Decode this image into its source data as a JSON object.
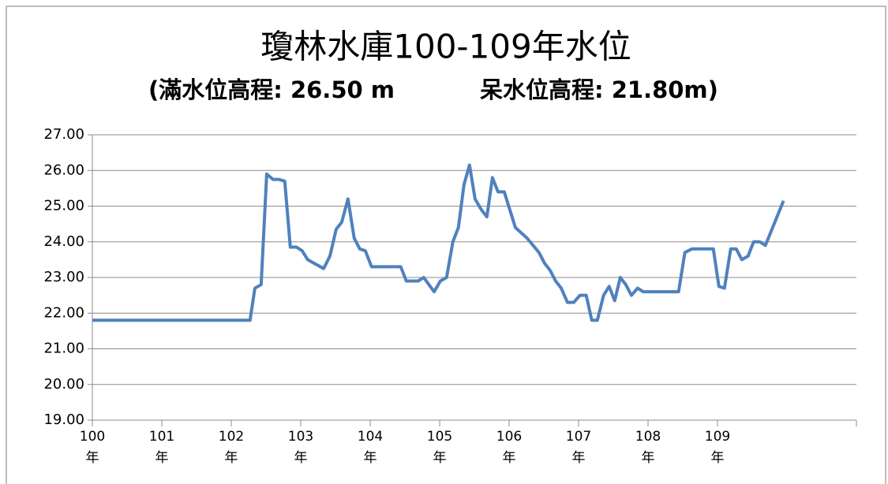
{
  "chart_data": {
    "type": "line",
    "title": "瓊林水庫100-109年水位",
    "subtitles": [
      "(滿水位高程: 26.50 m",
      "呆水位高程: 21.80m)"
    ],
    "xlim": [
      100,
      111
    ],
    "xticks": [
      {
        "value": 100,
        "label": "100年"
      },
      {
        "value": 101,
        "label": "101年"
      },
      {
        "value": 102,
        "label": "102年"
      },
      {
        "value": 103,
        "label": "103年"
      },
      {
        "value": 104,
        "label": "104年"
      },
      {
        "value": 105,
        "label": "105年"
      },
      {
        "value": 106,
        "label": "106年"
      },
      {
        "value": 107,
        "label": "107年"
      },
      {
        "value": 108,
        "label": "108年"
      },
      {
        "value": 109,
        "label": "109年"
      }
    ],
    "ylim": [
      19,
      27
    ],
    "yticks": [
      {
        "value": 19,
        "label": "19.00"
      },
      {
        "value": 20,
        "label": "20.00"
      },
      {
        "value": 21,
        "label": "21.00"
      },
      {
        "value": 22,
        "label": "22.00"
      },
      {
        "value": 23,
        "label": "23.00"
      },
      {
        "value": 24,
        "label": "24.00"
      },
      {
        "value": 25,
        "label": "25.00"
      },
      {
        "value": 26,
        "label": "26.00"
      },
      {
        "value": 27,
        "label": "27.00"
      }
    ],
    "grid": true,
    "series": [
      {
        "color": "#4f81bd",
        "x": [
          100,
          102.27,
          102.34,
          102.43,
          102.51,
          102.6,
          102.68,
          102.77,
          102.85,
          102.94,
          103.02,
          103.1,
          103.19,
          103.33,
          103.42,
          103.51,
          103.59,
          103.68,
          103.77,
          103.85,
          103.93,
          104.02,
          104.44,
          104.52,
          104.69,
          104.77,
          104.92,
          105.01,
          105.1,
          105.19,
          105.27,
          105.35,
          105.43,
          105.51,
          105.6,
          105.68,
          105.76,
          105.84,
          105.93,
          106.01,
          106.09,
          106.26,
          106.43,
          106.51,
          106.59,
          106.67,
          106.75,
          106.84,
          106.93,
          107.02,
          107.11,
          107.19,
          107.27,
          107.36,
          107.44,
          107.52,
          107.6,
          107.68,
          107.76,
          107.85,
          107.93,
          108.44,
          108.53,
          108.63,
          108.94,
          109.02,
          109.1,
          109.19,
          109.27,
          109.35,
          109.44,
          109.52,
          109.61,
          109.69,
          109.95
        ],
        "values": [
          21.8,
          21.8,
          22.7,
          22.8,
          25.9,
          25.75,
          25.75,
          25.7,
          23.85,
          23.85,
          23.75,
          23.5,
          23.4,
          23.25,
          23.6,
          24.35,
          24.55,
          25.2,
          24.1,
          23.8,
          23.75,
          23.3,
          23.3,
          22.9,
          22.9,
          23.0,
          22.6,
          22.9,
          23.0,
          24.0,
          24.4,
          25.6,
          26.15,
          25.2,
          24.9,
          24.7,
          25.8,
          25.4,
          25.4,
          24.9,
          24.4,
          24.1,
          23.7,
          23.4,
          23.2,
          22.9,
          22.7,
          22.3,
          22.3,
          22.5,
          22.5,
          21.8,
          21.8,
          22.5,
          22.75,
          22.35,
          23.0,
          22.8,
          22.5,
          22.7,
          22.6,
          22.6,
          23.7,
          23.8,
          23.8,
          22.75,
          22.7,
          23.8,
          23.8,
          23.5,
          23.6,
          24.0,
          24.0,
          23.9,
          25.15
        ]
      }
    ]
  }
}
